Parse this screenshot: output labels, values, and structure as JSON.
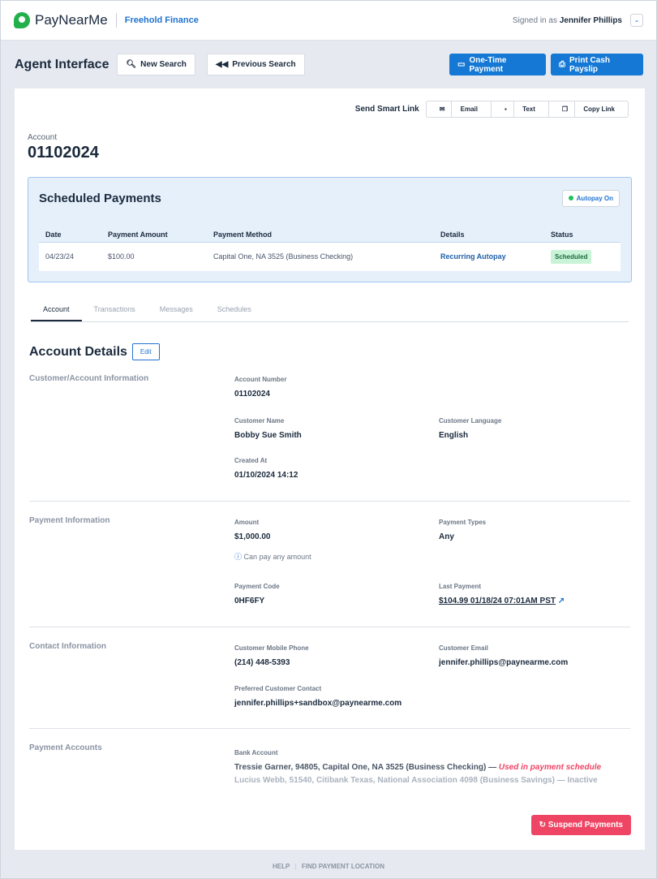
{
  "header": {
    "brand": "PayNearMe",
    "org": "Freehold Finance",
    "signed_prefix": "Signed in as",
    "user": "Jennifer Phillips"
  },
  "toolbar": {
    "title": "Agent Interface",
    "new_search": "New Search",
    "previous_search": "Previous Search",
    "one_time_payment": "One-Time Payment",
    "print_cash_payslip": "Print Cash Payslip"
  },
  "smart_link": {
    "label": "Send Smart Link",
    "email": "Email",
    "text": "Text",
    "copy": "Copy Link"
  },
  "account": {
    "label": "Account",
    "number": "01102024"
  },
  "scheduled": {
    "title": "Scheduled Payments",
    "autopay": "Autopay On",
    "columns": [
      "Date",
      "Payment Amount",
      "Payment Method",
      "Details",
      "Status"
    ],
    "rows": [
      {
        "date": "04/23/24",
        "amount": "$100.00",
        "method": "Capital One, NA 3525 (Business Checking)",
        "details": "Recurring Autopay",
        "status": "Scheduled"
      }
    ]
  },
  "tabs": [
    "Account",
    "Transactions",
    "Messages",
    "Schedules"
  ],
  "details": {
    "title": "Account Details",
    "edit": "Edit",
    "customer": {
      "title": "Customer/Account Information",
      "account_number_label": "Account Number",
      "account_number": "01102024",
      "name_label": "Customer Name",
      "name": "Bobby Sue Smith",
      "language_label": "Customer Language",
      "language": "English",
      "created_label": "Created At",
      "created": "01/10/2024 14:12"
    },
    "payment": {
      "title": "Payment Information",
      "amount_label": "Amount",
      "amount": "$1,000.00",
      "note": "Can pay any amount",
      "types_label": "Payment Types",
      "types": "Any",
      "code_label": "Payment Code",
      "code": "0HF6FY",
      "last_label": "Last Payment",
      "last": "$104.99 01/18/24 07:01AM PST"
    },
    "contact": {
      "title": "Contact Information",
      "phone_label": "Customer Mobile Phone",
      "phone": "(214) 448-5393",
      "email_label": "Customer Email",
      "email": "jennifer.phillips@paynearme.com",
      "pref_label": "Preferred Customer Contact",
      "pref": "jennifer.phillips+sandbox@paynearme.com"
    },
    "accounts": {
      "title": "Payment Accounts",
      "bank_label": "Bank Account",
      "bank1": "Tressie Garner, 94805, Capital One, NA 3525 (Business Checking) —",
      "bank1_note": "Used in payment schedule",
      "bank2": "Lucius Webb, 51540, Citibank Texas, National Association 4098 (Business Savings) — Inactive"
    }
  },
  "suspend": "Suspend Payments",
  "footer": {
    "help": "HELP",
    "find": "FIND PAYMENT LOCATION"
  }
}
